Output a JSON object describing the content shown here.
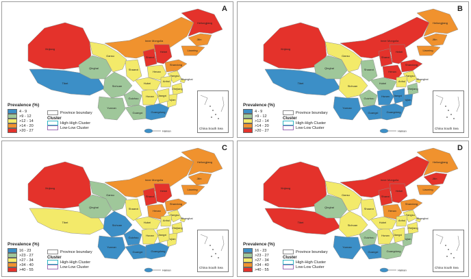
{
  "colors": {
    "c1": "#3c8fc7",
    "c2": "#9fc79a",
    "c3": "#f3ea6a",
    "c4": "#f0922e",
    "c5": "#e4322b",
    "boundary": "#8c8c8c",
    "hh": "#2bb3c2",
    "ll": "#9b6bb3"
  },
  "labels": {
    "prevalence_title": "Prevalence (%)",
    "province_boundary": "Province boundary",
    "cluster": "Cluster",
    "high_high": "High-High Cluster",
    "low_low": "Low-Low Cluster",
    "china_south_sea": "China South Sea",
    "hainan": "Hainan"
  },
  "provinces": [
    {
      "key": "xinjiang",
      "label": "Xinjiang"
    },
    {
      "key": "tibet",
      "label": "Tibet"
    },
    {
      "key": "qinghai",
      "label": "Qinghai"
    },
    {
      "key": "gansu",
      "label": "Gansu"
    },
    {
      "key": "innermongolia",
      "label": "Inner Mongolia"
    },
    {
      "key": "heilongjiang",
      "label": "Heilongjiang"
    },
    {
      "key": "jilin",
      "label": "Jilin"
    },
    {
      "key": "liaoning",
      "label": "Liaoning"
    },
    {
      "key": "sichuan",
      "label": "Sichuan"
    },
    {
      "key": "yunnan",
      "label": "Yunnan"
    },
    {
      "key": "guangxi",
      "label": "Guangxi"
    },
    {
      "key": "guangdong",
      "label": "Guangdong"
    },
    {
      "key": "hunan",
      "label": "Hunan"
    },
    {
      "key": "hubei",
      "label": "Hubei"
    },
    {
      "key": "henan",
      "label": "Henan"
    },
    {
      "key": "shandong",
      "label": "Shandong"
    },
    {
      "key": "jiangsu",
      "label": "Jiangsu"
    },
    {
      "key": "shanghai",
      "label": "Shanghai"
    },
    {
      "key": "zhejiang",
      "label": "Zhejiang"
    },
    {
      "key": "fujian",
      "label": "Fujian"
    },
    {
      "key": "jiangxi",
      "label": "Jiangxi"
    },
    {
      "key": "anhui",
      "label": "Anhui"
    },
    {
      "key": "shaanxi",
      "label": "Shaanxi"
    },
    {
      "key": "shanxi",
      "label": "Shanxi"
    },
    {
      "key": "hebei",
      "label": "Hebei"
    },
    {
      "key": "guizhou",
      "label": "Guizhou"
    }
  ],
  "panels": [
    {
      "letter": "A",
      "legend": [
        "4 - 9",
        ">9 - 12",
        ">12 - 14",
        ">14 - 20",
        ">20 - 27"
      ],
      "fills": {
        "xinjiang": 5,
        "tibet": 1,
        "qinghai": 2,
        "gansu": 3,
        "innermongolia": 4,
        "heilongjiang": 5,
        "jilin": 4,
        "liaoning": 4,
        "sichuan": 2,
        "yunnan": 2,
        "guangxi": 2,
        "guangdong": 1,
        "hunan": 3,
        "hubei": 3,
        "henan": 3,
        "shandong": 4,
        "jiangsu": 3,
        "shanghai": 3,
        "zhejiang": 3,
        "fujian": 3,
        "jiangxi": 3,
        "anhui": 3,
        "shaanxi": 3,
        "shanxi": 5,
        "hebei": 5,
        "guizhou": 2
      }
    },
    {
      "letter": "B",
      "legend": [
        "4 - 9",
        ">9 - 12",
        ">12 - 14",
        ">14 - 20",
        ">20 - 27"
      ],
      "fills": {
        "xinjiang": 5,
        "tibet": 1,
        "qinghai": 2,
        "gansu": 3,
        "innermongolia": 5,
        "heilongjiang": 4,
        "jilin": 4,
        "liaoning": 4,
        "sichuan": 3,
        "yunnan": 1,
        "guangxi": 1,
        "guangdong": 1,
        "hunan": 1,
        "hubei": 2,
        "henan": 5,
        "shandong": 5,
        "jiangsu": 3,
        "shanghai": 3,
        "zhejiang": 2,
        "fujian": 1,
        "jiangxi": 1,
        "anhui": 3,
        "shaanxi": 2,
        "shanxi": 5,
        "hebei": 5,
        "guizhou": 2
      }
    },
    {
      "letter": "C",
      "legend": [
        "16 - 23",
        ">23 - 27",
        ">27 - 34",
        ">34 - 40",
        ">40 - 55"
      ],
      "fills": {
        "xinjiang": 5,
        "tibet": 3,
        "qinghai": 2,
        "gansu": 2,
        "innermongolia": 4,
        "heilongjiang": 4,
        "jilin": 4,
        "liaoning": 4,
        "sichuan": 1,
        "yunnan": 1,
        "guangxi": 1,
        "guangdong": 1,
        "hunan": 3,
        "hubei": 3,
        "henan": 4,
        "shandong": 4,
        "jiangsu": 3,
        "shanghai": 3,
        "zhejiang": 3,
        "fujian": 3,
        "jiangxi": 3,
        "anhui": 3,
        "shaanxi": 3,
        "shanxi": 5,
        "hebei": 5,
        "guizhou": 1
      }
    },
    {
      "letter": "D",
      "legend": [
        "16 - 23",
        ">23 - 27",
        ">27 - 34",
        ">34 - 40",
        ">40 - 55"
      ],
      "fills": {
        "xinjiang": 5,
        "tibet": 5,
        "qinghai": 2,
        "gansu": 3,
        "innermongolia": 5,
        "heilongjiang": 4,
        "jilin": 5,
        "liaoning": 4,
        "sichuan": 3,
        "yunnan": 1,
        "guangxi": 1,
        "guangdong": 2,
        "hunan": 3,
        "hubei": 3,
        "henan": 4,
        "shandong": 4,
        "jiangsu": 3,
        "shanghai": 3,
        "zhejiang": 3,
        "fujian": 2,
        "jiangxi": 3,
        "anhui": 3,
        "shaanxi": 3,
        "shanxi": 5,
        "hebei": 5,
        "guizhou": 2
      }
    }
  ]
}
